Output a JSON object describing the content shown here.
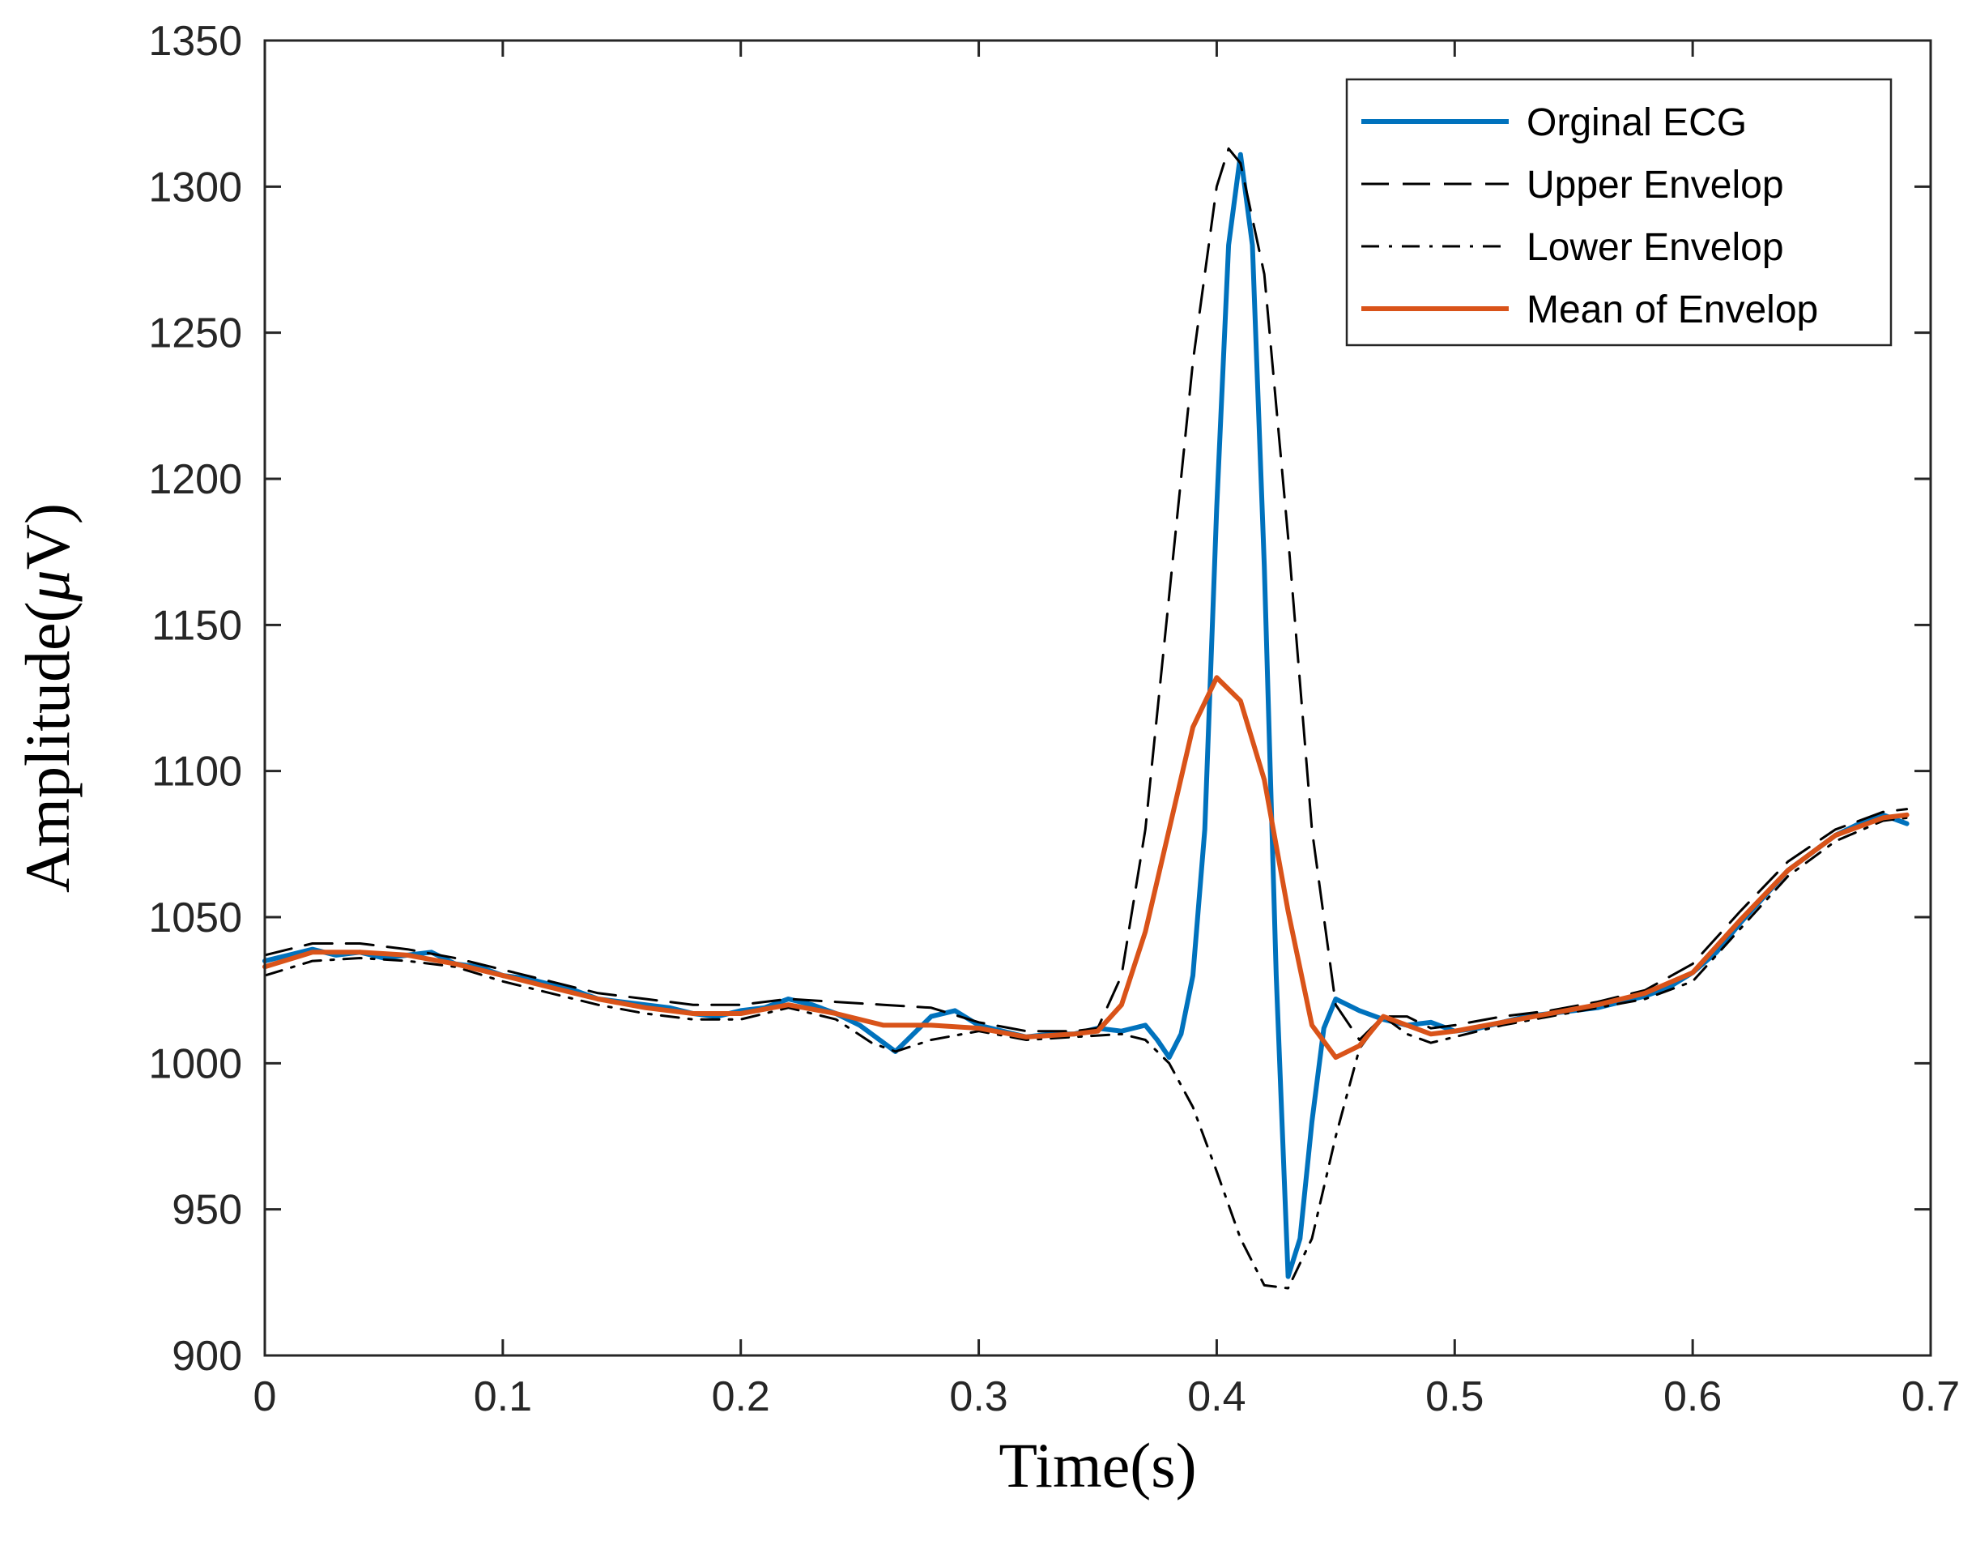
{
  "chart_data": {
    "type": "line",
    "title": "",
    "xlabel": "Time(s)",
    "ylabel_prefix": "Amplitude(",
    "ylabel_symbol": "μ",
    "ylabel_suffix": "V)",
    "xlim": [
      0,
      0.7
    ],
    "ylim": [
      900,
      1350
    ],
    "xticks": [
      0,
      0.1,
      0.2,
      0.3,
      0.4,
      0.5,
      0.6,
      0.7
    ],
    "xtick_labels": [
      "0",
      "0.1",
      "0.2",
      "0.3",
      "0.4",
      "0.5",
      "0.6",
      "0.7"
    ],
    "yticks": [
      900,
      950,
      1000,
      1050,
      1100,
      1150,
      1200,
      1250,
      1300,
      1350
    ],
    "ytick_labels": [
      "900",
      "950",
      "1000",
      "1050",
      "1100",
      "1150",
      "1200",
      "1250",
      "1300",
      "1350"
    ],
    "grid": false,
    "legend_position": "top-right",
    "series": [
      {
        "name": "Orginal ECG",
        "color": "#0072BD",
        "style": "solid",
        "points": [
          [
            0,
            1035
          ],
          [
            0.01,
            1037
          ],
          [
            0.02,
            1039
          ],
          [
            0.03,
            1037
          ],
          [
            0.04,
            1038
          ],
          [
            0.05,
            1036
          ],
          [
            0.06,
            1037
          ],
          [
            0.07,
            1038
          ],
          [
            0.08,
            1034
          ],
          [
            0.09,
            1033
          ],
          [
            0.1,
            1030
          ],
          [
            0.11,
            1029
          ],
          [
            0.12,
            1027
          ],
          [
            0.13,
            1025
          ],
          [
            0.14,
            1022
          ],
          [
            0.15,
            1021
          ],
          [
            0.16,
            1020
          ],
          [
            0.17,
            1019
          ],
          [
            0.18,
            1017
          ],
          [
            0.19,
            1016
          ],
          [
            0.2,
            1018
          ],
          [
            0.21,
            1019
          ],
          [
            0.22,
            1022
          ],
          [
            0.23,
            1020
          ],
          [
            0.24,
            1017
          ],
          [
            0.25,
            1013
          ],
          [
            0.26,
            1007
          ],
          [
            0.265,
            1004
          ],
          [
            0.27,
            1008
          ],
          [
            0.28,
            1016
          ],
          [
            0.29,
            1018
          ],
          [
            0.3,
            1013
          ],
          [
            0.31,
            1011
          ],
          [
            0.32,
            1009
          ],
          [
            0.33,
            1010
          ],
          [
            0.34,
            1010
          ],
          [
            0.35,
            1012
          ],
          [
            0.36,
            1011
          ],
          [
            0.37,
            1013
          ],
          [
            0.375,
            1008
          ],
          [
            0.38,
            1002
          ],
          [
            0.385,
            1010
          ],
          [
            0.39,
            1030
          ],
          [
            0.395,
            1080
          ],
          [
            0.4,
            1190
          ],
          [
            0.405,
            1280
          ],
          [
            0.41,
            1311
          ],
          [
            0.415,
            1280
          ],
          [
            0.42,
            1170
          ],
          [
            0.425,
            1030
          ],
          [
            0.43,
            927
          ],
          [
            0.435,
            940
          ],
          [
            0.44,
            980
          ],
          [
            0.445,
            1012
          ],
          [
            0.45,
            1022
          ],
          [
            0.46,
            1018
          ],
          [
            0.47,
            1015
          ],
          [
            0.48,
            1013
          ],
          [
            0.49,
            1014
          ],
          [
            0.5,
            1011
          ],
          [
            0.51,
            1012
          ],
          [
            0.52,
            1014
          ],
          [
            0.53,
            1016
          ],
          [
            0.54,
            1017
          ],
          [
            0.55,
            1018
          ],
          [
            0.56,
            1019
          ],
          [
            0.57,
            1021
          ],
          [
            0.58,
            1023
          ],
          [
            0.59,
            1026
          ],
          [
            0.6,
            1031
          ],
          [
            0.61,
            1038
          ],
          [
            0.62,
            1048
          ],
          [
            0.63,
            1057
          ],
          [
            0.64,
            1066
          ],
          [
            0.65,
            1072
          ],
          [
            0.66,
            1078
          ],
          [
            0.67,
            1082
          ],
          [
            0.68,
            1085
          ],
          [
            0.69,
            1082
          ]
        ]
      },
      {
        "name": "Upper Envelop",
        "color": "#000000",
        "style": "dashed",
        "points": [
          [
            0,
            1037
          ],
          [
            0.02,
            1041
          ],
          [
            0.04,
            1041
          ],
          [
            0.06,
            1039
          ],
          [
            0.08,
            1036
          ],
          [
            0.1,
            1032
          ],
          [
            0.12,
            1028
          ],
          [
            0.14,
            1024
          ],
          [
            0.16,
            1022
          ],
          [
            0.18,
            1020
          ],
          [
            0.2,
            1020
          ],
          [
            0.22,
            1022
          ],
          [
            0.24,
            1021
          ],
          [
            0.26,
            1020
          ],
          [
            0.28,
            1019
          ],
          [
            0.3,
            1014
          ],
          [
            0.32,
            1011
          ],
          [
            0.34,
            1011
          ],
          [
            0.35,
            1012
          ],
          [
            0.36,
            1030
          ],
          [
            0.37,
            1080
          ],
          [
            0.38,
            1160
          ],
          [
            0.39,
            1240
          ],
          [
            0.4,
            1300
          ],
          [
            0.405,
            1313
          ],
          [
            0.41,
            1308
          ],
          [
            0.42,
            1270
          ],
          [
            0.43,
            1180
          ],
          [
            0.44,
            1080
          ],
          [
            0.45,
            1020
          ],
          [
            0.46,
            1008
          ],
          [
            0.47,
            1016
          ],
          [
            0.48,
            1016
          ],
          [
            0.49,
            1012
          ],
          [
            0.5,
            1013
          ],
          [
            0.52,
            1016
          ],
          [
            0.54,
            1018
          ],
          [
            0.56,
            1021
          ],
          [
            0.58,
            1025
          ],
          [
            0.6,
            1034
          ],
          [
            0.62,
            1052
          ],
          [
            0.64,
            1069
          ],
          [
            0.66,
            1080
          ],
          [
            0.68,
            1086
          ],
          [
            0.69,
            1087
          ]
        ]
      },
      {
        "name": "Lower Envelop",
        "color": "#000000",
        "style": "dashdot",
        "points": [
          [
            0,
            1030
          ],
          [
            0.02,
            1035
          ],
          [
            0.04,
            1036
          ],
          [
            0.06,
            1035
          ],
          [
            0.08,
            1033
          ],
          [
            0.1,
            1028
          ],
          [
            0.12,
            1024
          ],
          [
            0.14,
            1020
          ],
          [
            0.16,
            1017
          ],
          [
            0.18,
            1015
          ],
          [
            0.2,
            1015
          ],
          [
            0.22,
            1019
          ],
          [
            0.24,
            1015
          ],
          [
            0.255,
            1007
          ],
          [
            0.265,
            1004
          ],
          [
            0.28,
            1008
          ],
          [
            0.3,
            1011
          ],
          [
            0.32,
            1008
          ],
          [
            0.34,
            1009
          ],
          [
            0.36,
            1010
          ],
          [
            0.37,
            1008
          ],
          [
            0.38,
            1000
          ],
          [
            0.39,
            985
          ],
          [
            0.4,
            963
          ],
          [
            0.41,
            940
          ],
          [
            0.42,
            924
          ],
          [
            0.43,
            923
          ],
          [
            0.44,
            940
          ],
          [
            0.45,
            975
          ],
          [
            0.46,
            1005
          ],
          [
            0.47,
            1016
          ],
          [
            0.48,
            1010
          ],
          [
            0.49,
            1007
          ],
          [
            0.5,
            1009
          ],
          [
            0.52,
            1013
          ],
          [
            0.54,
            1016
          ],
          [
            0.56,
            1019
          ],
          [
            0.58,
            1022
          ],
          [
            0.6,
            1028
          ],
          [
            0.62,
            1046
          ],
          [
            0.64,
            1064
          ],
          [
            0.66,
            1076
          ],
          [
            0.68,
            1083
          ],
          [
            0.69,
            1084
          ]
        ]
      },
      {
        "name": "Mean of Envelop",
        "color": "#D95319",
        "style": "solid",
        "points": [
          [
            0,
            1033
          ],
          [
            0.02,
            1038
          ],
          [
            0.04,
            1038
          ],
          [
            0.06,
            1037
          ],
          [
            0.08,
            1034
          ],
          [
            0.1,
            1030
          ],
          [
            0.12,
            1026
          ],
          [
            0.14,
            1022
          ],
          [
            0.16,
            1019
          ],
          [
            0.18,
            1017
          ],
          [
            0.2,
            1017
          ],
          [
            0.22,
            1020
          ],
          [
            0.24,
            1017
          ],
          [
            0.26,
            1013
          ],
          [
            0.28,
            1013
          ],
          [
            0.3,
            1012
          ],
          [
            0.32,
            1009
          ],
          [
            0.34,
            1010
          ],
          [
            0.35,
            1011
          ],
          [
            0.36,
            1020
          ],
          [
            0.37,
            1045
          ],
          [
            0.38,
            1080
          ],
          [
            0.39,
            1115
          ],
          [
            0.4,
            1132
          ],
          [
            0.41,
            1124
          ],
          [
            0.42,
            1097
          ],
          [
            0.43,
            1052
          ],
          [
            0.44,
            1013
          ],
          [
            0.45,
            1002
          ],
          [
            0.46,
            1006
          ],
          [
            0.47,
            1016
          ],
          [
            0.48,
            1013
          ],
          [
            0.49,
            1010
          ],
          [
            0.5,
            1011
          ],
          [
            0.52,
            1014
          ],
          [
            0.54,
            1017
          ],
          [
            0.56,
            1020
          ],
          [
            0.58,
            1024
          ],
          [
            0.6,
            1031
          ],
          [
            0.62,
            1049
          ],
          [
            0.64,
            1066
          ],
          [
            0.66,
            1078
          ],
          [
            0.68,
            1084
          ],
          [
            0.69,
            1085
          ]
        ]
      }
    ]
  }
}
